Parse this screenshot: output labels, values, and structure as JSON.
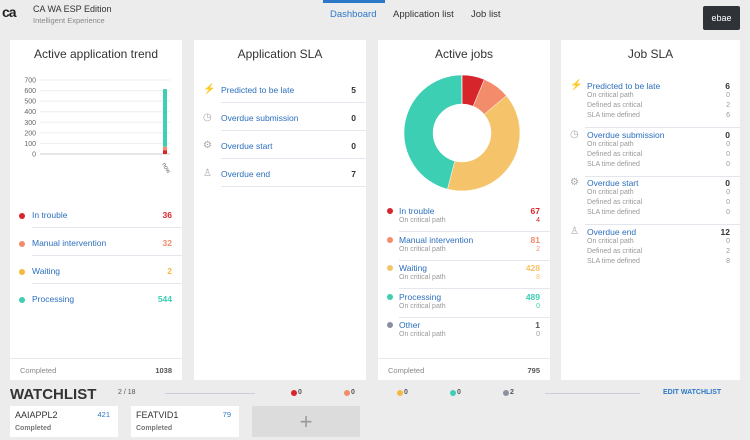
{
  "header": {
    "logo": "ca",
    "title": "CA WA ESP Edition",
    "subtitle": "Intelligent Experience",
    "nav": [
      "Dashboard",
      "Application list",
      "Job list"
    ],
    "user": "ebae"
  },
  "trend": {
    "title": "Active application trend",
    "items": [
      {
        "label": "In trouble",
        "value": "36",
        "color": "#d7262b"
      },
      {
        "label": "Manual intervention",
        "value": "32",
        "color": "#f28c6a"
      },
      {
        "label": "Waiting",
        "value": "2",
        "color": "#f5b840"
      },
      {
        "label": "Processing",
        "value": "544",
        "color": "#3ccfb3"
      }
    ],
    "completed_label": "Completed",
    "completed": "1038"
  },
  "chart_data": {
    "type": "bar",
    "stacked": true,
    "categories": [
      "now"
    ],
    "series": [
      {
        "name": "In trouble",
        "values": [
          36
        ]
      },
      {
        "name": "Manual intervention",
        "values": [
          32
        ]
      },
      {
        "name": "Waiting",
        "values": [
          2
        ]
      },
      {
        "name": "Processing",
        "values": [
          544
        ]
      }
    ],
    "yticks": [
      "700",
      "600",
      "500",
      "400",
      "300",
      "200",
      "100",
      "0"
    ],
    "ylim": [
      0,
      700
    ]
  },
  "appsla": {
    "title": "Application SLA",
    "items": [
      {
        "label": "Predicted to be late",
        "value": "5",
        "icon": "⚡"
      },
      {
        "label": "Overdue submission",
        "value": "0",
        "icon": "◷"
      },
      {
        "label": "Overdue start",
        "value": "0",
        "icon": "⚙"
      },
      {
        "label": "Overdue end",
        "value": "7",
        "icon": "♙"
      }
    ]
  },
  "jobs": {
    "title": "Active jobs",
    "crit_label": "On critical path",
    "items": [
      {
        "label": "In trouble",
        "value": "67",
        "crit": "4",
        "color": "#d7262b"
      },
      {
        "label": "Manual intervention",
        "value": "81",
        "crit": "2",
        "color": "#f28c6a"
      },
      {
        "label": "Waiting",
        "value": "428",
        "crit": "8",
        "color": "#f5c46a"
      },
      {
        "label": "Processing",
        "value": "489",
        "crit": "0",
        "color": "#3ccfb3"
      },
      {
        "label": "Other",
        "value": "1",
        "crit": "0",
        "color": "#8a90a0"
      }
    ],
    "completed_label": "Completed",
    "completed": "795"
  },
  "jobsla": {
    "title": "Job SLA",
    "sub_labels": [
      "On critical path",
      "Defined as critical",
      "SLA time defined"
    ],
    "items": [
      {
        "label": "Predicted to be late",
        "value": "6",
        "subs": [
          "0",
          "2",
          "6"
        ],
        "icon": "⚡"
      },
      {
        "label": "Overdue submission",
        "value": "0",
        "subs": [
          "0",
          "0",
          "0"
        ],
        "icon": "◷"
      },
      {
        "label": "Overdue start",
        "value": "0",
        "subs": [
          "0",
          "0",
          "0"
        ],
        "icon": "⚙"
      },
      {
        "label": "Overdue end",
        "value": "12",
        "subs": [
          "0",
          "2",
          "8"
        ],
        "icon": "♙"
      }
    ]
  },
  "watchlist": {
    "title": "WATCHLIST",
    "count": "2 / 18",
    "status_counts": [
      {
        "value": "0",
        "color": "#d7262b"
      },
      {
        "value": "0",
        "color": "#f28c6a"
      },
      {
        "value": "0",
        "color": "#f5b840"
      },
      {
        "value": "0",
        "color": "#3ccfb3"
      },
      {
        "value": "2",
        "color": "#8a90a0"
      }
    ],
    "edit": "EDIT WATCHLIST",
    "cards": [
      {
        "name": "AAIAPPL2",
        "count": "421",
        "status": "Completed"
      },
      {
        "name": "FEATVID1",
        "count": "79",
        "status": "Completed"
      }
    ],
    "add": "+"
  }
}
